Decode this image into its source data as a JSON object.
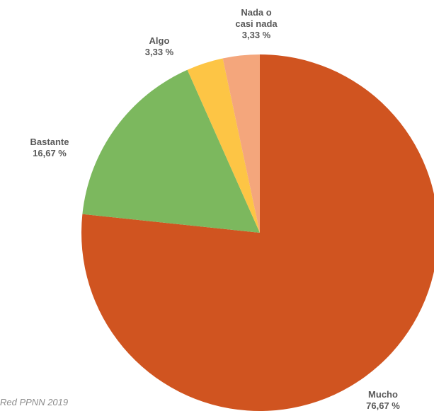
{
  "chart_data": {
    "type": "pie",
    "slices": [
      {
        "label": [
          "Mucho"
        ],
        "value_label": "76,67 %",
        "value": 76.67,
        "color": "#D05420",
        "label_anchor": "bottom-right"
      },
      {
        "label": [
          "Bastante"
        ],
        "value_label": "16,67 %",
        "value": 16.67,
        "color": "#7CB85E",
        "label_anchor": "left"
      },
      {
        "label": [
          "Algo"
        ],
        "value_label": "3,33 %",
        "value": 3.33,
        "color": "#FDC545",
        "label_anchor": "top-left"
      },
      {
        "label": [
          "Nada o",
          "casi nada"
        ],
        "value_label": "3,33 %",
        "value": 3.33,
        "color": "#F4A67C",
        "label_anchor": "top"
      }
    ],
    "start_angle": "top",
    "direction": "clockwise"
  },
  "source_note": "Red PPNN 2019"
}
